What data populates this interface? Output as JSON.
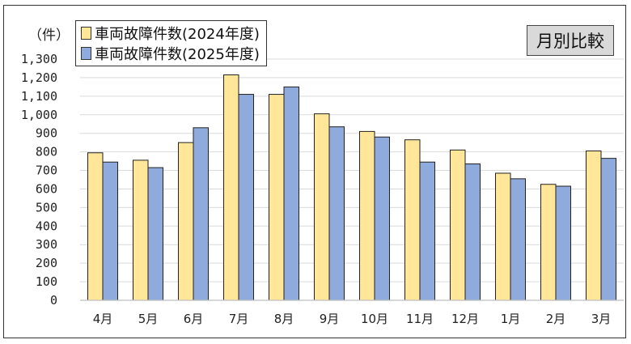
{
  "chart_data": {
    "type": "bar",
    "unit_label": "（件）",
    "badge": "月別比較",
    "categories": [
      "4月",
      "5月",
      "6月",
      "7月",
      "8月",
      "9月",
      "10月",
      "11月",
      "12月",
      "1月",
      "2月",
      "3月"
    ],
    "series": [
      {
        "name": "車両故障件数(2024年度)",
        "color": "#ffe699",
        "values": [
          795,
          755,
          850,
          1215,
          1110,
          1005,
          910,
          865,
          810,
          685,
          625,
          805
        ]
      },
      {
        "name": "車両故障件数(2025年度)",
        "color": "#8faadc",
        "values": [
          745,
          715,
          930,
          1110,
          1150,
          935,
          880,
          745,
          735,
          655,
          615,
          765
        ]
      }
    ],
    "ylim": [
      0,
      1300
    ],
    "yticks": [
      "0",
      "100",
      "200",
      "300",
      "400",
      "500",
      "600",
      "700",
      "800",
      "900",
      "1,000",
      "1,100",
      "1,200",
      "1,300"
    ],
    "grid": true,
    "legend_position": "top-left"
  }
}
